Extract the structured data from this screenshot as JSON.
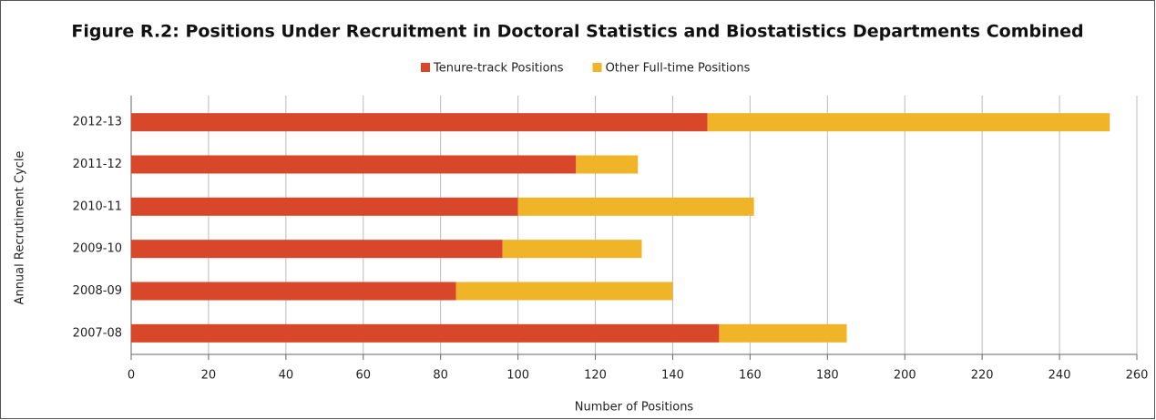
{
  "chart_data": {
    "type": "stacked-bar-horizontal",
    "title": "Figure R.2: Positions Under Recruitment in Doctoral Statistics and Biostatistics Departments Combined",
    "x_label": "Number of Positions",
    "y_label": "Annual Recrutiment Cycle",
    "categories": [
      "2012-13",
      "2011-12",
      "2010-11",
      "2009-10",
      "2008-09",
      "2007-08"
    ],
    "series": [
      {
        "name": "Tenure-track Positions",
        "color": "#d9472b",
        "values": [
          149,
          115,
          100,
          96,
          84,
          152
        ]
      },
      {
        "name": "Other Full-time Positions",
        "color": "#f0b429",
        "values": [
          104,
          16,
          61,
          36,
          56,
          33
        ]
      }
    ],
    "xlim": [
      0,
      260
    ],
    "xticks": [
      0,
      20,
      40,
      60,
      80,
      100,
      120,
      140,
      160,
      180,
      200,
      220,
      240,
      260
    ],
    "grid": true,
    "legend": "top"
  }
}
